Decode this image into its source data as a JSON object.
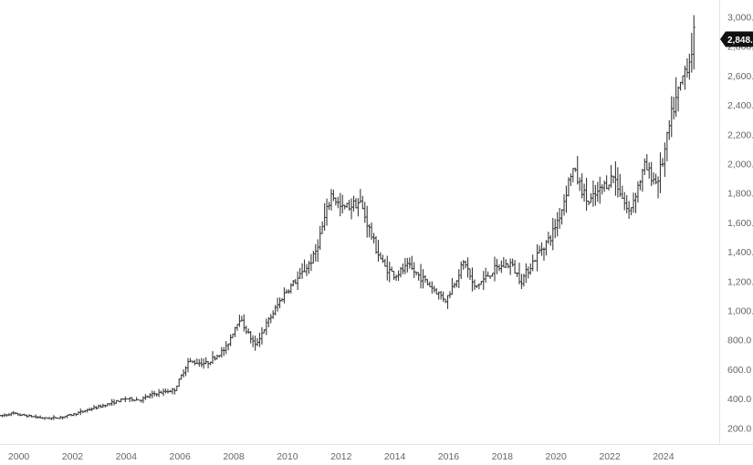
{
  "chart_data": {
    "type": "ohlc-bar",
    "title": "",
    "xlabel": "",
    "ylabel": "",
    "grid": false,
    "frequency": "monthly",
    "x_range": [
      1999.3,
      2025.6
    ],
    "ylim": [
      90,
      3115
    ],
    "x_ticks": [
      {
        "value": 2000,
        "label": "2000"
      },
      {
        "value": 2002,
        "label": "2002"
      },
      {
        "value": 2004,
        "label": "2004"
      },
      {
        "value": 2006,
        "label": "2006"
      },
      {
        "value": 2008,
        "label": "2008"
      },
      {
        "value": 2010,
        "label": "2010"
      },
      {
        "value": 2012,
        "label": "2012"
      },
      {
        "value": 2014,
        "label": "2014"
      },
      {
        "value": 2016,
        "label": "2016"
      },
      {
        "value": 2018,
        "label": "2018"
      },
      {
        "value": 2020,
        "label": "2020"
      },
      {
        "value": 2022,
        "label": "2022"
      },
      {
        "value": 2024,
        "label": "2024"
      }
    ],
    "y_ticks": [
      {
        "value": 200,
        "label": "200.0"
      },
      {
        "value": 400,
        "label": "400.0"
      },
      {
        "value": 600,
        "label": "600.0"
      },
      {
        "value": 800,
        "label": "800.0"
      },
      {
        "value": 1000,
        "label": "1,000."
      },
      {
        "value": 1200,
        "label": "1,200."
      },
      {
        "value": 1400,
        "label": "1,400."
      },
      {
        "value": 1600,
        "label": "1,600."
      },
      {
        "value": 1800,
        "label": "1,800."
      },
      {
        "value": 2000,
        "label": "2,000."
      },
      {
        "value": 2200,
        "label": "2,200."
      },
      {
        "value": 2400,
        "label": "2,400."
      },
      {
        "value": 2600,
        "label": "2,600."
      },
      {
        "value": 2800,
        "label": "2,800."
      },
      {
        "value": 3000,
        "label": "3,000."
      }
    ],
    "last_price": {
      "value": 2848,
      "label": "2,848."
    },
    "anchors": [
      [
        1999.3,
        280
      ],
      [
        1999.75,
        300
      ],
      [
        2000.0,
        290
      ],
      [
        2001.0,
        265
      ],
      [
        2001.5,
        270
      ],
      [
        2002.0,
        290
      ],
      [
        2002.5,
        320
      ],
      [
        2003.0,
        345
      ],
      [
        2004.0,
        400
      ],
      [
        2004.5,
        390
      ],
      [
        2005.0,
        430
      ],
      [
        2005.8,
        460
      ],
      [
        2006.3,
        650
      ],
      [
        2007.0,
        640
      ],
      [
        2007.7,
        740
      ],
      [
        2008.2,
        950
      ],
      [
        2008.8,
        760
      ],
      [
        2009.2,
        900
      ],
      [
        2009.9,
        1120
      ],
      [
        2010.5,
        1240
      ],
      [
        2011.0,
        1370
      ],
      [
        2011.65,
        1800
      ],
      [
        2012.0,
        1690
      ],
      [
        2012.7,
        1740
      ],
      [
        2013.3,
        1420
      ],
      [
        2013.6,
        1300
      ],
      [
        2014.0,
        1240
      ],
      [
        2014.5,
        1300
      ],
      [
        2015.0,
        1220
      ],
      [
        2015.9,
        1070
      ],
      [
        2016.6,
        1340
      ],
      [
        2016.95,
        1150
      ],
      [
        2017.7,
        1280
      ],
      [
        2018.3,
        1320
      ],
      [
        2018.7,
        1200
      ],
      [
        2019.4,
        1410
      ],
      [
        2019.8,
        1500
      ],
      [
        2020.2,
        1680
      ],
      [
        2020.6,
        1970
      ],
      [
        2021.2,
        1730
      ],
      [
        2021.6,
        1810
      ],
      [
        2022.15,
        1920
      ],
      [
        2022.7,
        1660
      ],
      [
        2023.3,
        1980
      ],
      [
        2023.75,
        1870
      ],
      [
        2024.0,
        2040
      ],
      [
        2024.3,
        2330
      ],
      [
        2024.8,
        2640
      ],
      [
        2025.0,
        2720
      ],
      [
        2025.15,
        2900
      ]
    ]
  }
}
